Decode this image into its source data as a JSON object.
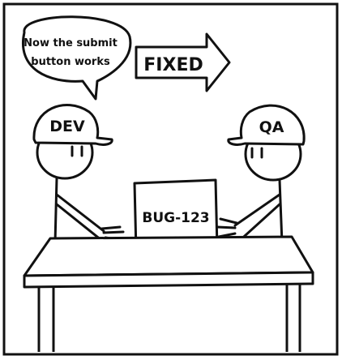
{
  "speech_bubble": {
    "line1": "Now the submit",
    "line2": "button works"
  },
  "arrow_label": "FIXED",
  "dev_cap_label": "DEV",
  "qa_cap_label": "QA",
  "laptop_label": "BUG-123",
  "colors": {
    "ink": "#111111",
    "paper": "#ffffff"
  }
}
